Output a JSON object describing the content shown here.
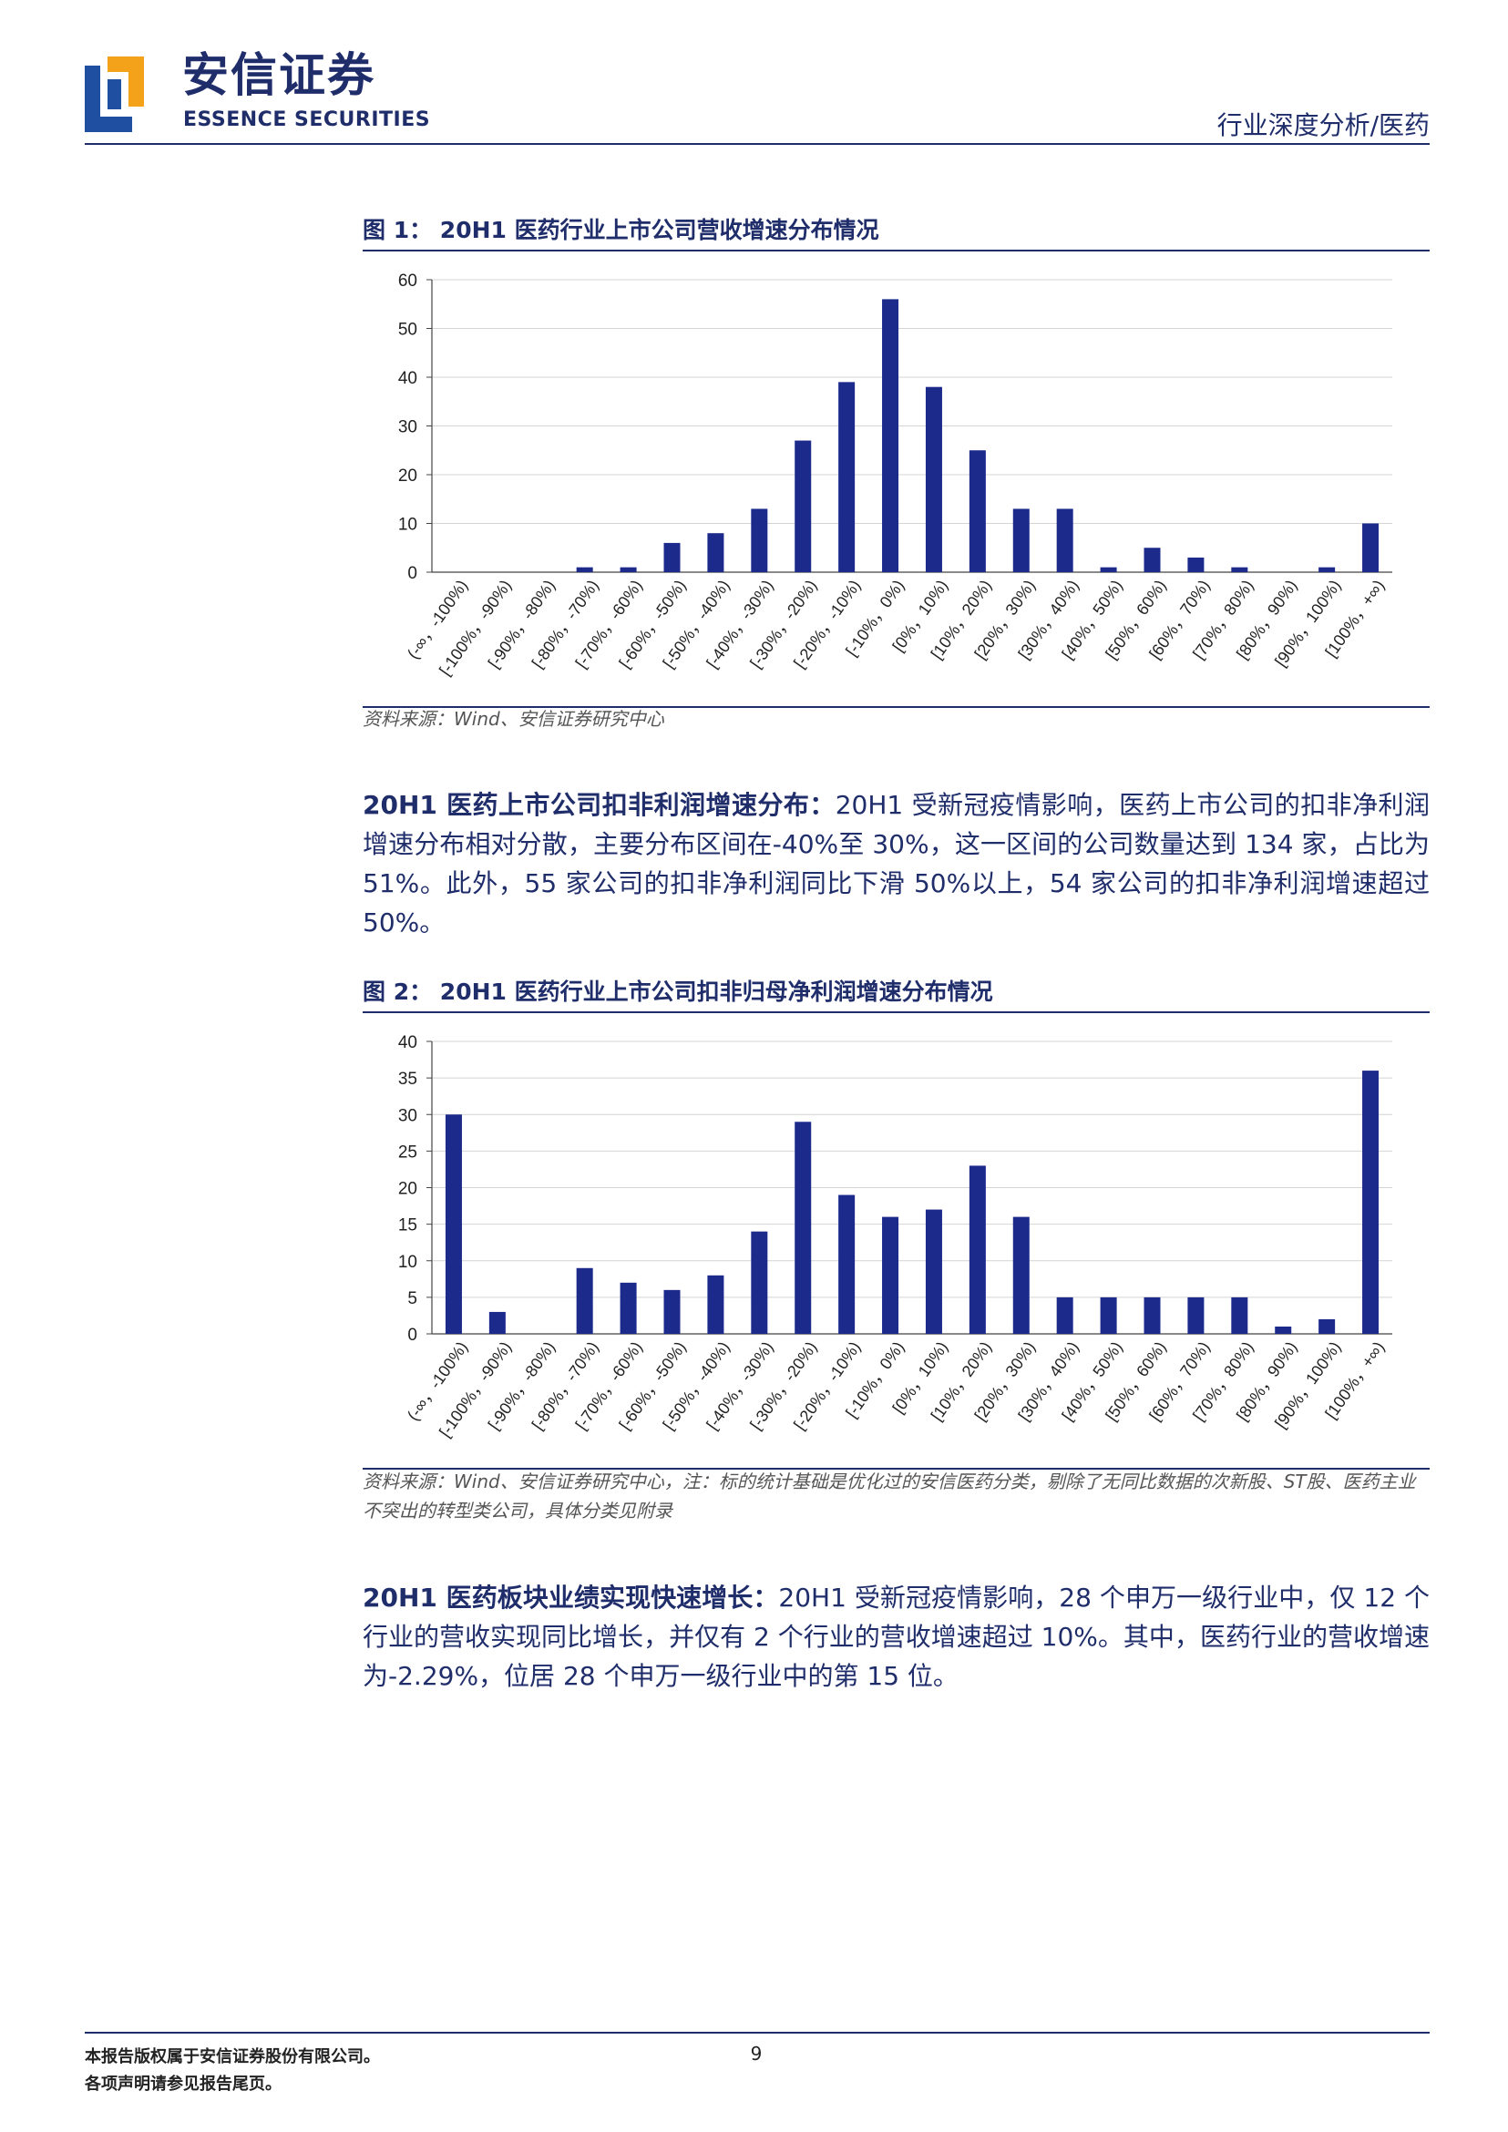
{
  "header": {
    "brand_cn": "安信证券",
    "brand_en": "ESSENCE SECURITIES",
    "category": "行业深度分析/医药",
    "accent_color": "#1f2d6b",
    "logo_colors": [
      "#1f4fa0",
      "#f5a21b"
    ]
  },
  "figure1": {
    "title": "图 1： 20H1 医药行业上市公司营收增速分布情况",
    "source": "资料来源：Wind、安信证券研究中心"
  },
  "figure2": {
    "title": "图 2： 20H1 医药行业上市公司扣非归母净利润增速分布情况",
    "source": "资料来源：Wind、安信证券研究中心，注：标的统计基础是优化过的安信医药分类，剔除了无同比数据的次新股、ST股、医药主业不突出的转型类公司，具体分类见附录"
  },
  "paragraph1": {
    "lead": "20H1 医药上市公司扣非利润增速分布：",
    "text": "20H1 受新冠疫情影响，医药上市公司的扣非净利润增速分布相对分散，主要分布区间在-40%至 30%，这一区间的公司数量达到 134 家，占比为 51%。此外，55 家公司的扣非净利润同比下滑 50%以上，54 家公司的扣非净利润增速超过 50%。"
  },
  "paragraph2": {
    "lead": "20H1 医药板块业绩实现快速增长：",
    "text": "20H1 受新冠疫情影响，28 个申万一级行业中，仅 12 个行业的营收实现同比增长，并仅有 2 个行业的营收增速超过 10%。其中，医药行业的营收增速为-2.29%，位居 28 个申万一级行业中的第 15 位。"
  },
  "footer": {
    "line1": "本报告版权属于安信证券股份有限公司。",
    "line2": "各项声明请参见报告尾页。",
    "page_number": "9"
  },
  "chart_data": [
    {
      "type": "bar",
      "title": "20H1 医药行业上市公司营收增速分布情况",
      "categories": [
        "(-∞，-100%)",
        "[-100%，-90%)",
        "[-90%，-80%)",
        "[-80%，-70%)",
        "[-70%，-60%)",
        "[-60%，-50%)",
        "[-50%，-40%)",
        "[-40%，-30%)",
        "[-30%，-20%)",
        "[-20%，-10%)",
        "[-10%，0%)",
        "[0%，10%)",
        "[10%，20%)",
        "[20%，30%)",
        "[30%，40%)",
        "[40%，50%)",
        "[50%，60%)",
        "[60%，70%)",
        "[70%，80%)",
        "[80%，90%)",
        "[90%，100%)",
        "[100%，+∞)"
      ],
      "values": [
        0,
        0,
        0,
        1,
        1,
        6,
        8,
        13,
        27,
        39,
        56,
        38,
        25,
        13,
        13,
        1,
        5,
        3,
        1,
        0,
        1,
        10
      ],
      "ylim": [
        0,
        60
      ],
      "yticks": [
        0,
        10,
        20,
        30,
        40,
        50,
        60
      ],
      "grid": true,
      "color": "#1c2a8c"
    },
    {
      "type": "bar",
      "title": "20H1 医药行业上市公司扣非归母净利润增速分布情况",
      "categories": [
        "(-∞，-100%)",
        "[-100%，-90%)",
        "[-90%，-80%)",
        "[-80%，-70%)",
        "[-70%，-60%)",
        "[-60%，-50%)",
        "[-50%，-40%)",
        "[-40%，-30%)",
        "[-30%，-20%)",
        "[-20%，-10%)",
        "[-10%，0%)",
        "[0%，10%)",
        "[10%，20%)",
        "[20%，30%)",
        "[30%，40%)",
        "[40%，50%)",
        "[50%，60%)",
        "[60%，70%)",
        "[70%，80%)",
        "[80%，90%)",
        "[90%，100%)",
        "[100%，+∞)"
      ],
      "values": [
        30,
        3,
        0,
        9,
        7,
        6,
        8,
        14,
        29,
        19,
        16,
        17,
        23,
        16,
        5,
        5,
        5,
        5,
        5,
        1,
        2,
        36
      ],
      "ylim": [
        0,
        40
      ],
      "yticks": [
        0,
        5,
        10,
        15,
        20,
        25,
        30,
        35,
        40
      ],
      "grid": true,
      "color": "#1c2a8c"
    }
  ]
}
